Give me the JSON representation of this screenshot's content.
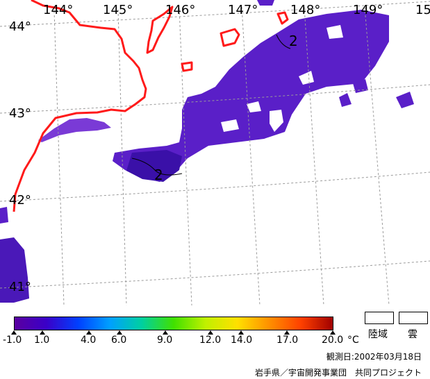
{
  "map": {
    "lon_labels": [
      "144°",
      "145°",
      "146°",
      "147°",
      "148°",
      "149°",
      "15"
    ],
    "lat_labels": [
      "44°",
      "43°",
      "42°",
      "41°"
    ],
    "contour_labels": [
      "2",
      "2"
    ],
    "colors": {
      "coast": "#ff1a1a",
      "sst_main": "#5a1fc8",
      "sst_dark": "#3a10a8",
      "sst_light": "#7a3ad6",
      "grid": "#9a9a9a"
    }
  },
  "legend": {
    "scale_labels": [
      "-1.0",
      "1.0",
      "4.0",
      "6.0",
      "9.0",
      "12.0",
      "14.0",
      "17.0",
      "20.0"
    ],
    "unit": "°C",
    "land_label": "陸域",
    "cloud_label": "雲",
    "gradient": [
      "#5a00a0",
      "#3a00c8",
      "#0040ff",
      "#00a0ff",
      "#00d0a0",
      "#40e000",
      "#c0f000",
      "#ffe000",
      "#ff9000",
      "#ff4000",
      "#a00000"
    ]
  },
  "footer": {
    "date": "観測日:2002年03月18日",
    "credit": "岩手県／宇宙開発事業団　共同プロジェクト"
  }
}
